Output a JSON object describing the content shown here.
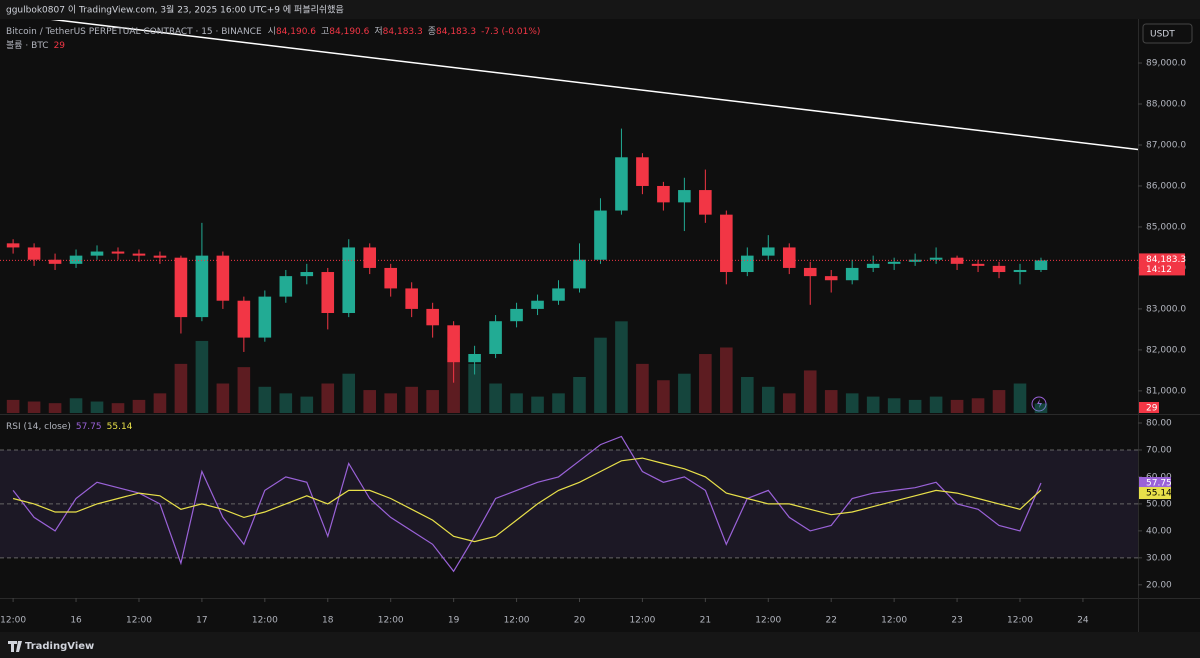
{
  "header": {
    "publisher": "ggulbok0807 이 TradingView.com, 3월 23, 2025 16:00 UTC+9 에 퍼블리쉬했음",
    "currency": "USDT",
    "brand": "TradingView"
  },
  "chart_data": {
    "type": "candlestick",
    "symbol": "Bitcoin / TetherUS PERPETUAL CONTRACT · 15 · BINANCE",
    "ohlc_legend": [
      {
        "key": "시",
        "value": "84,190.6"
      },
      {
        "key": "고",
        "value": "84,190.6"
      },
      {
        "key": "저",
        "value": "84,183.3"
      },
      {
        "key": "종",
        "value": "84,183.3"
      }
    ],
    "change": "-7.3 (-0.01%)",
    "x": [
      12,
      16,
      20,
      24,
      28,
      32,
      36,
      40,
      44,
      48,
      52,
      56,
      60,
      64,
      68,
      72,
      76,
      80,
      84,
      88,
      92,
      96,
      100,
      104,
      108,
      112,
      116,
      120,
      124,
      128,
      132,
      136,
      140,
      144,
      148,
      152,
      156,
      160,
      164,
      168,
      172,
      176,
      180,
      184,
      188,
      192,
      196,
      200,
      204,
      208
    ],
    "open": [
      84600,
      84500,
      84200,
      84100,
      84300,
      84400,
      84350,
      84300,
      84250,
      82800,
      84300,
      83200,
      82300,
      83300,
      83800,
      83900,
      82900,
      84500,
      84000,
      83500,
      83000,
      82600,
      81700,
      81900,
      82700,
      83000,
      83200,
      83500,
      84200,
      85400,
      86700,
      86000,
      85600,
      85900,
      85300,
      83900,
      84300,
      84500,
      84000,
      83800,
      83700,
      84000,
      84100,
      84150,
      84200,
      84250,
      84100,
      84050,
      83900,
      83950
    ],
    "high": [
      84700,
      84600,
      84350,
      84450,
      84550,
      84500,
      84450,
      84400,
      84300,
      85100,
      84400,
      83300,
      83450,
      83950,
      84100,
      84000,
      84700,
      84600,
      84100,
      83650,
      83150,
      82700,
      82100,
      82850,
      83150,
      83350,
      83700,
      84600,
      85700,
      87400,
      86800,
      86100,
      86200,
      86400,
      85400,
      84500,
      84800,
      84600,
      84150,
      83950,
      84200,
      84300,
      84250,
      84350,
      84500,
      84300,
      84200,
      84150,
      84100,
      84250
    ],
    "low": [
      84350,
      84050,
      83950,
      84000,
      84200,
      84200,
      84150,
      84100,
      82400,
      82700,
      83000,
      81950,
      82200,
      83150,
      83600,
      82500,
      82800,
      83850,
      83300,
      82800,
      82300,
      81200,
      81400,
      81800,
      82550,
      82850,
      83100,
      83400,
      84100,
      85300,
      85800,
      85400,
      84900,
      85100,
      83600,
      83800,
      84200,
      83850,
      83100,
      83400,
      83600,
      83900,
      83950,
      84050,
      84100,
      83950,
      83900,
      83750,
      83600,
      83900
    ],
    "close": [
      84500,
      84200,
      84100,
      84300,
      84400,
      84350,
      84300,
      84250,
      82800,
      84300,
      83200,
      82300,
      83300,
      83800,
      83900,
      82900,
      84500,
      84000,
      83500,
      83000,
      82600,
      81700,
      81900,
      82700,
      83000,
      83200,
      83500,
      84200,
      85400,
      86700,
      86000,
      85600,
      85900,
      85300,
      83900,
      84300,
      84500,
      84000,
      83800,
      83700,
      84000,
      84100,
      84150,
      84200,
      84250,
      84100,
      84050,
      83900,
      83950,
      84183.3
    ],
    "up_color": "#22ab94",
    "down_color": "#f23645",
    "xlim": [
      9.5,
      226.5
    ],
    "xticks": [
      {
        "value": 12,
        "label": "12:00"
      },
      {
        "value": 24,
        "label": "16"
      },
      {
        "value": 36,
        "label": "12:00"
      },
      {
        "value": 48,
        "label": "17"
      },
      {
        "value": 60,
        "label": "12:00"
      },
      {
        "value": 72,
        "label": "18"
      },
      {
        "value": 84,
        "label": "12:00"
      },
      {
        "value": 96,
        "label": "19"
      },
      {
        "value": 108,
        "label": "12:00"
      },
      {
        "value": 120,
        "label": "20"
      },
      {
        "value": 132,
        "label": "12:00"
      },
      {
        "value": 144,
        "label": "21"
      },
      {
        "value": 156,
        "label": "12:00"
      },
      {
        "value": 168,
        "label": "22"
      },
      {
        "value": 180,
        "label": "12:00"
      },
      {
        "value": 192,
        "label": "23"
      },
      {
        "value": 204,
        "label": "12:00"
      },
      {
        "value": 216,
        "label": "24"
      }
    ],
    "ylim": [
      80460,
      90050
    ],
    "yticks": [
      {
        "value": 81000,
        "label": "81,000.0"
      },
      {
        "value": 82000,
        "label": "82,000.0"
      },
      {
        "value": 83000,
        "label": "83,000.0"
      },
      {
        "value": 84000,
        "label": "84,000.0"
      },
      {
        "value": 85000,
        "label": "85,000.0"
      },
      {
        "value": 86000,
        "label": "86,000.0"
      },
      {
        "value": 87000,
        "label": "87,000.0"
      },
      {
        "value": 88000,
        "label": "88,000.0"
      },
      {
        "value": 89000,
        "label": "89,000.0"
      }
    ],
    "last_price": {
      "value": 84183.3,
      "label": "84,183.3"
    },
    "countdown": "14:12",
    "trendline": {
      "x": [
        17.1,
        227.1
      ],
      "y": [
        90100,
        86880
      ],
      "color": "#ffffff"
    },
    "volume": {
      "name": "볼륨 · BTC",
      "values": [
        40,
        35,
        30,
        45,
        35,
        30,
        40,
        60,
        150,
        220,
        90,
        140,
        80,
        60,
        50,
        90,
        120,
        70,
        60,
        80,
        70,
        200,
        150,
        90,
        60,
        50,
        60,
        110,
        230,
        280,
        150,
        100,
        120,
        180,
        200,
        110,
        80,
        60,
        130,
        70,
        60,
        50,
        45,
        40,
        50,
        40,
        45,
        70,
        90,
        29
      ],
      "ylim": [
        0,
        1200
      ]
    },
    "rsi": {
      "title": "RSI (14, close)",
      "ylim": [
        15.1,
        82.6
      ],
      "yticks": [
        {
          "value": 20,
          "label": "20.00"
        },
        {
          "value": 30,
          "label": "30.00"
        },
        {
          "value": 40,
          "label": "40.00"
        },
        {
          "value": 50,
          "label": "50.00"
        },
        {
          "value": 60,
          "label": "60.00"
        },
        {
          "value": 70,
          "label": "70.00"
        },
        {
          "value": 80,
          "label": "80.00"
        }
      ],
      "bands": [
        30,
        50,
        70
      ],
      "values": [
        55,
        45,
        40,
        52,
        58,
        56,
        54,
        50,
        28,
        62,
        45,
        35,
        55,
        60,
        58,
        38,
        65,
        52,
        45,
        40,
        35,
        25,
        38,
        52,
        55,
        58,
        60,
        66,
        72,
        75,
        62,
        58,
        60,
        55,
        35,
        52,
        55,
        45,
        40,
        42,
        52,
        54,
        55,
        56,
        58,
        50,
        48,
        42,
        40,
        57.75
      ],
      "color": "#9a62d8",
      "ma_values": [
        52,
        50,
        47,
        47,
        50,
        52,
        54,
        53,
        48,
        50,
        48,
        45,
        47,
        50,
        53,
        50,
        55,
        55,
        52,
        48,
        44,
        38,
        36,
        38,
        44,
        50,
        55,
        58,
        62,
        66,
        67,
        65,
        63,
        60,
        54,
        52,
        50,
        50,
        48,
        46,
        47,
        49,
        51,
        53,
        55,
        54,
        52,
        50,
        48,
        55.14
      ],
      "ma_color": "#e8e04a"
    }
  }
}
